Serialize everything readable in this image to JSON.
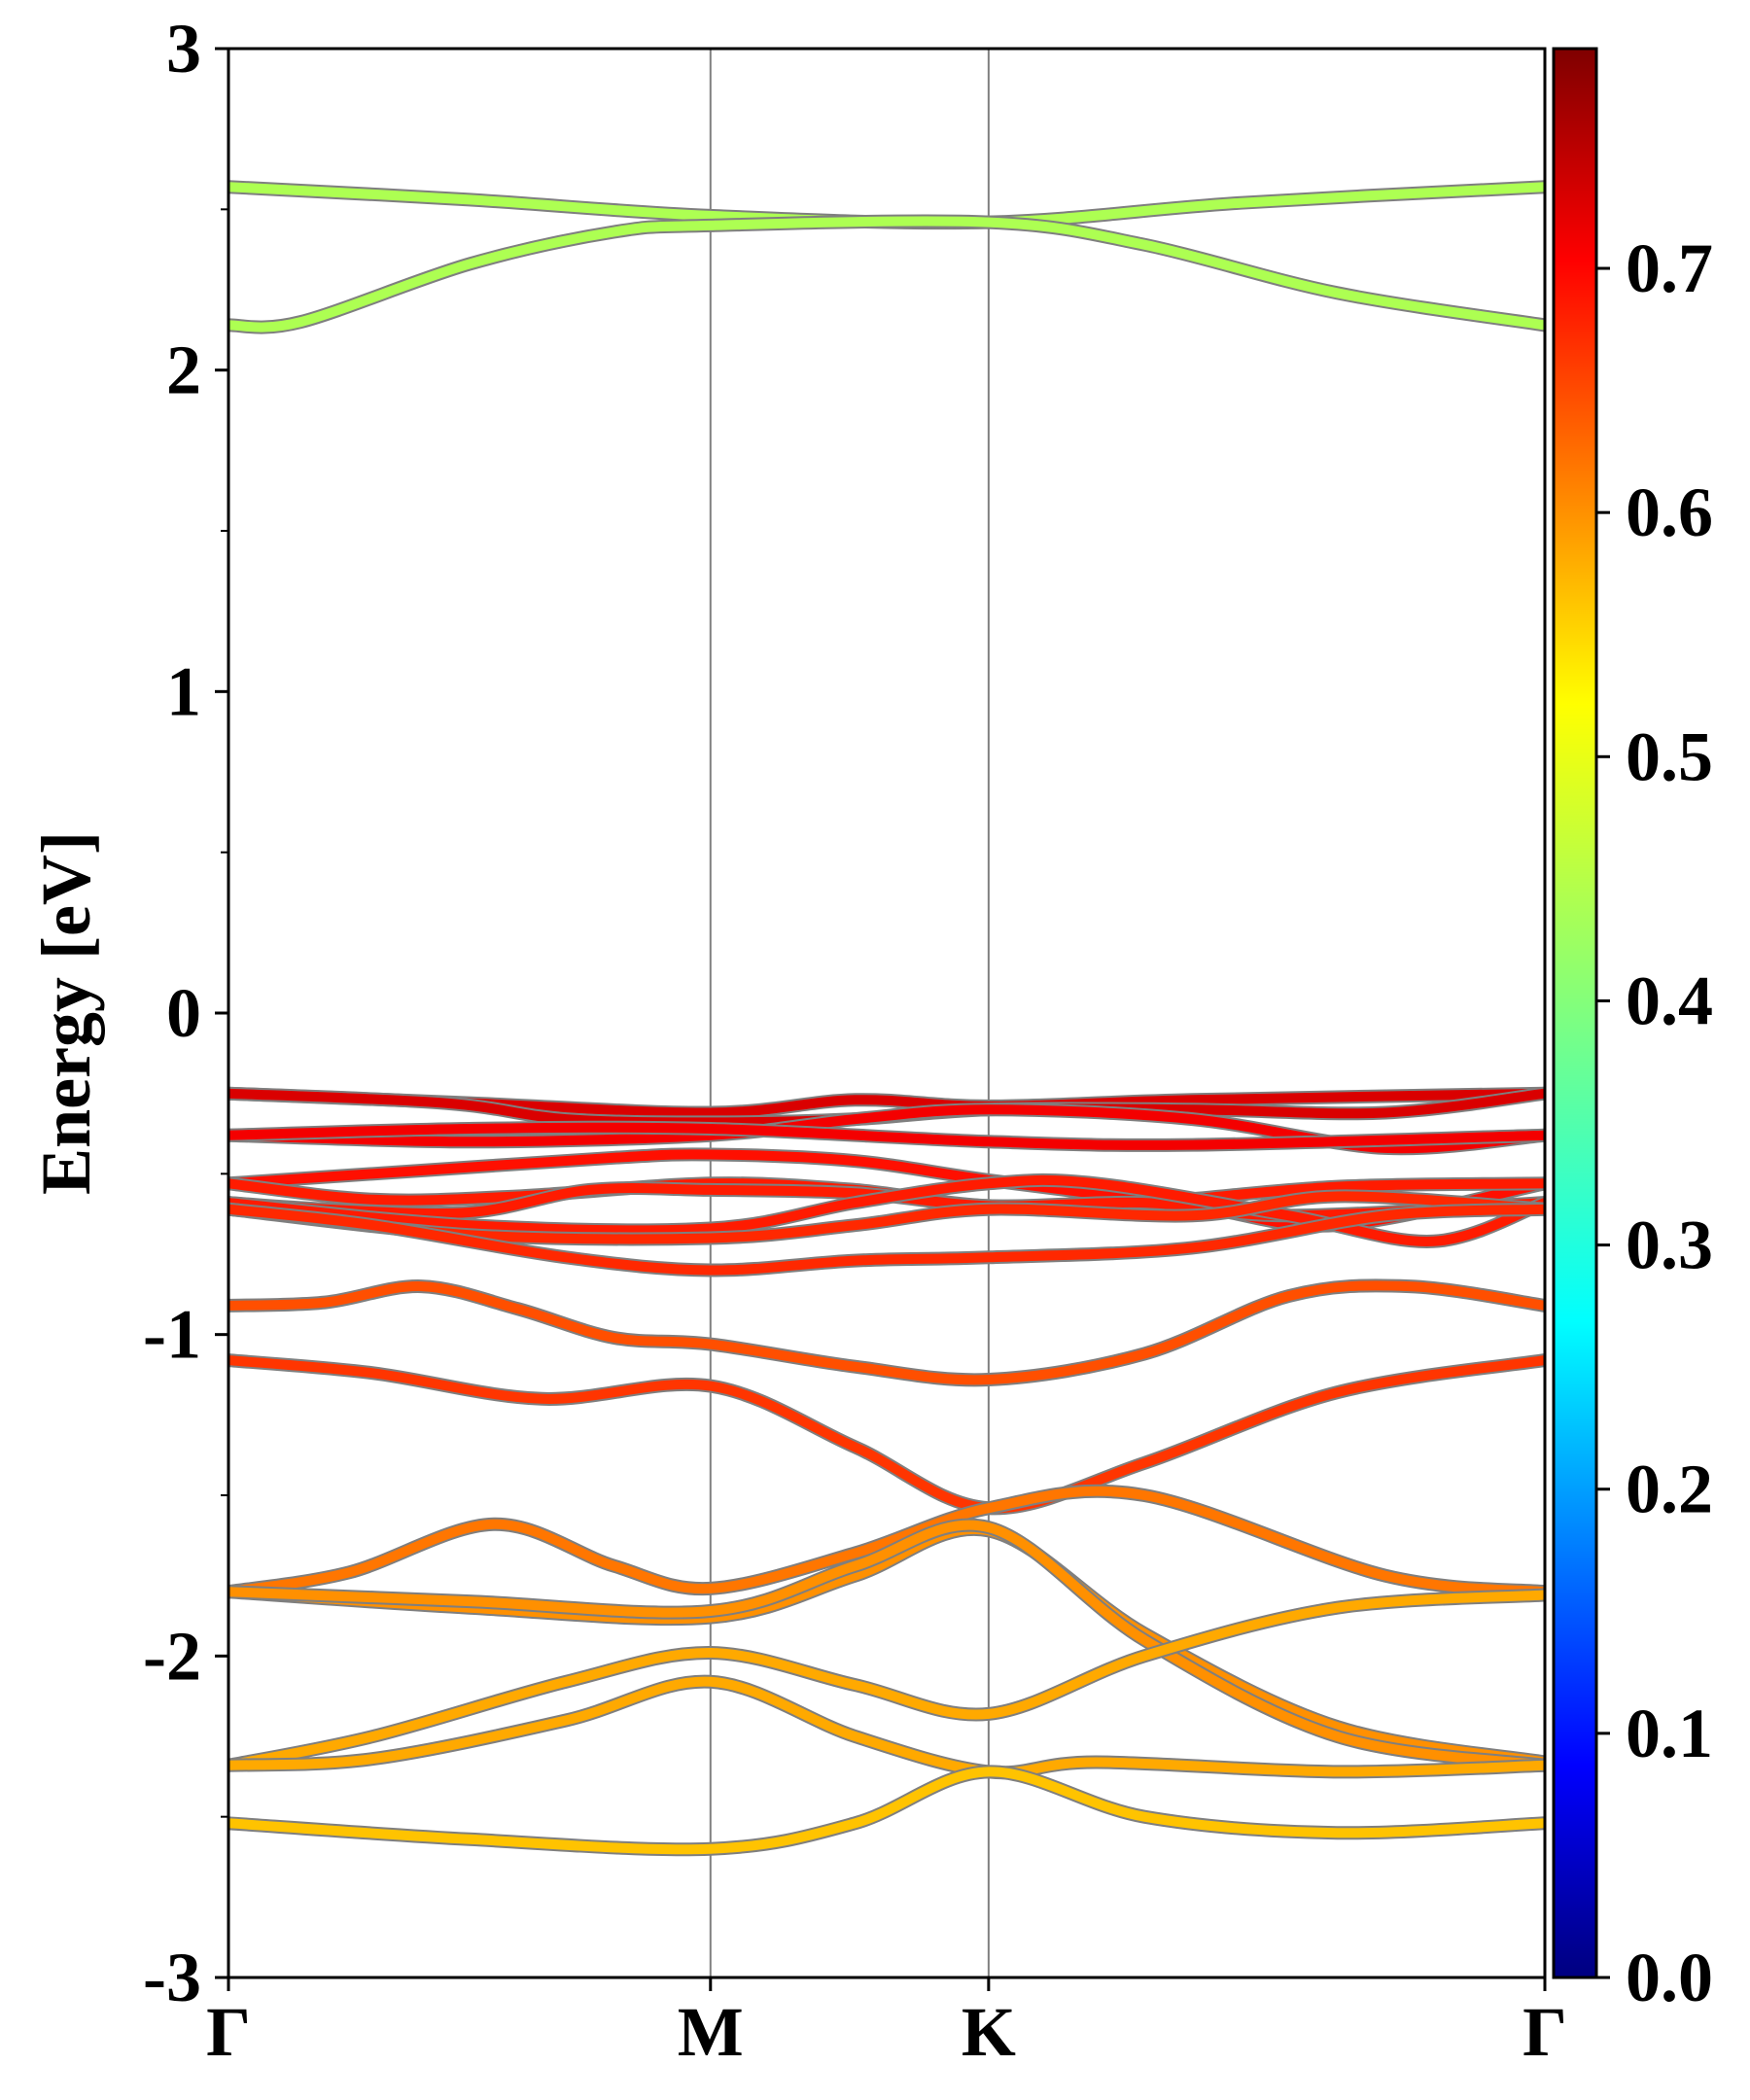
{
  "chart_data": {
    "type": "line",
    "title": "",
    "xlabel": "",
    "ylabel": "Energy [eV]",
    "ylim": [
      -3,
      3
    ],
    "yticks": [
      "-3",
      "-2",
      "-1",
      "0",
      "1",
      "2",
      "3"
    ],
    "yminor": [
      -2.5,
      -1.5,
      -0.5,
      0.5,
      1.5,
      2.5
    ],
    "kpath": {
      "labels": [
        "Γ",
        "M",
        "K",
        "Γ"
      ],
      "positions": [
        0,
        1,
        1.577,
        2.731
      ]
    },
    "grid": "vertical lines at high-symmetry points",
    "colorbar": {
      "ticks": [
        "0.0",
        "0.1",
        "0.2",
        "0.3",
        "0.4",
        "0.5",
        "0.6",
        "0.7"
      ],
      "min": 0.0,
      "max": 0.79,
      "colormap": "jet"
    },
    "line_edge_color": "#7f7f7f",
    "series": [
      {
        "weight": 0.43,
        "points": [
          [
            0,
            2.57
          ],
          [
            0.5,
            2.53
          ],
          [
            1,
            2.48
          ],
          [
            1.577,
            2.46
          ],
          [
            2.1,
            2.52
          ],
          [
            2.731,
            2.57
          ]
        ]
      },
      {
        "weight": 0.43,
        "points": [
          [
            0,
            2.14
          ],
          [
            0.15,
            2.15
          ],
          [
            0.5,
            2.33
          ],
          [
            0.8,
            2.43
          ],
          [
            1,
            2.45
          ],
          [
            1.577,
            2.46
          ],
          [
            1.9,
            2.39
          ],
          [
            2.3,
            2.24
          ],
          [
            2.731,
            2.14
          ]
        ]
      },
      {
        "weight": 0.72,
        "points": [
          [
            0,
            -0.25
          ],
          [
            0.5,
            -0.28
          ],
          [
            1,
            -0.31
          ],
          [
            1.3,
            -0.27
          ],
          [
            1.577,
            -0.29
          ],
          [
            2.0,
            -0.27
          ],
          [
            2.731,
            -0.25
          ]
        ]
      },
      {
        "weight": 0.72,
        "points": [
          [
            0,
            -0.25
          ],
          [
            0.45,
            -0.28
          ],
          [
            0.7,
            -0.33
          ],
          [
            1,
            -0.34
          ],
          [
            1.3,
            -0.33
          ],
          [
            1.577,
            -0.3
          ],
          [
            2.0,
            -0.3
          ],
          [
            2.4,
            -0.31
          ],
          [
            2.731,
            -0.25
          ]
        ]
      },
      {
        "weight": 0.7,
        "points": [
          [
            0,
            -0.38
          ],
          [
            0.5,
            -0.4
          ],
          [
            1,
            -0.38
          ],
          [
            1.3,
            -0.33
          ],
          [
            1.577,
            -0.3
          ],
          [
            2.0,
            -0.33
          ],
          [
            2.4,
            -0.42
          ],
          [
            2.731,
            -0.38
          ]
        ]
      },
      {
        "weight": 0.7,
        "points": [
          [
            0,
            -0.38
          ],
          [
            0.5,
            -0.36
          ],
          [
            1,
            -0.36
          ],
          [
            1.577,
            -0.4
          ],
          [
            2.0,
            -0.41
          ],
          [
            2.731,
            -0.38
          ]
        ]
      },
      {
        "weight": 0.68,
        "points": [
          [
            0,
            -0.53
          ],
          [
            0.4,
            -0.49
          ],
          [
            0.8,
            -0.45
          ],
          [
            1,
            -0.44
          ],
          [
            1.3,
            -0.46
          ],
          [
            1.577,
            -0.52
          ],
          [
            2.0,
            -0.6
          ],
          [
            2.3,
            -0.66
          ],
          [
            2.731,
            -0.53
          ]
        ]
      },
      {
        "weight": 0.67,
        "points": [
          [
            0,
            -0.53
          ],
          [
            0.3,
            -0.58
          ],
          [
            0.6,
            -0.57
          ],
          [
            1,
            -0.53
          ],
          [
            1.3,
            -0.55
          ],
          [
            1.577,
            -0.6
          ],
          [
            1.9,
            -0.59
          ],
          [
            2.3,
            -0.54
          ],
          [
            2.731,
            -0.53
          ]
        ]
      },
      {
        "weight": 0.67,
        "points": [
          [
            0,
            -0.59
          ],
          [
            0.2,
            -0.61
          ],
          [
            0.5,
            -0.62
          ],
          [
            0.75,
            -0.55
          ],
          [
            1,
            -0.55
          ],
          [
            1.3,
            -0.56
          ],
          [
            1.577,
            -0.6
          ],
          [
            1.9,
            -0.59
          ],
          [
            2.2,
            -0.63
          ],
          [
            2.731,
            -0.59
          ]
        ]
      },
      {
        "weight": 0.67,
        "points": [
          [
            0,
            -0.59
          ],
          [
            0.5,
            -0.66
          ],
          [
            1,
            -0.67
          ],
          [
            1.3,
            -0.59
          ],
          [
            1.577,
            -0.53
          ],
          [
            1.8,
            -0.53
          ],
          [
            2.2,
            -0.63
          ],
          [
            2.5,
            -0.71
          ],
          [
            2.731,
            -0.59
          ]
        ]
      },
      {
        "weight": 0.66,
        "points": [
          [
            0,
            -0.61
          ],
          [
            0.5,
            -0.69
          ],
          [
            1,
            -0.7
          ],
          [
            1.3,
            -0.66
          ],
          [
            1.577,
            -0.61
          ],
          [
            2.0,
            -0.63
          ],
          [
            2.3,
            -0.57
          ],
          [
            2.731,
            -0.61
          ]
        ]
      },
      {
        "weight": 0.66,
        "points": [
          [
            0,
            -0.61
          ],
          [
            0.3,
            -0.66
          ],
          [
            0.7,
            -0.76
          ],
          [
            1,
            -0.8
          ],
          [
            1.3,
            -0.77
          ],
          [
            1.577,
            -0.76
          ],
          [
            2.0,
            -0.73
          ],
          [
            2.4,
            -0.63
          ],
          [
            2.731,
            -0.61
          ]
        ]
      },
      {
        "weight": 0.63,
        "points": [
          [
            0,
            -0.91
          ],
          [
            0.2,
            -0.9
          ],
          [
            0.4,
            -0.85
          ],
          [
            0.6,
            -0.92
          ],
          [
            0.8,
            -1.01
          ],
          [
            1,
            -1.03
          ],
          [
            1.3,
            -1.1
          ],
          [
            1.577,
            -1.14
          ],
          [
            1.9,
            -1.06
          ],
          [
            2.2,
            -0.88
          ],
          [
            2.45,
            -0.85
          ],
          [
            2.731,
            -0.91
          ]
        ]
      },
      {
        "weight": 0.65,
        "points": [
          [
            0,
            -1.08
          ],
          [
            0.3,
            -1.12
          ],
          [
            0.65,
            -1.2
          ],
          [
            1,
            -1.16
          ],
          [
            1.3,
            -1.35
          ],
          [
            1.577,
            -1.54
          ],
          [
            1.9,
            -1.4
          ],
          [
            2.3,
            -1.18
          ],
          [
            2.731,
            -1.08
          ]
        ]
      },
      {
        "weight": 0.6,
        "points": [
          [
            0,
            -1.8
          ],
          [
            0.25,
            -1.74
          ],
          [
            0.55,
            -1.59
          ],
          [
            0.8,
            -1.72
          ],
          [
            1,
            -1.79
          ],
          [
            1.3,
            -1.68
          ],
          [
            1.577,
            -1.54
          ],
          [
            1.9,
            -1.5
          ],
          [
            2.4,
            -1.75
          ],
          [
            2.731,
            -1.8
          ]
        ]
      },
      {
        "weight": 0.58,
        "points": [
          [
            0,
            -1.8
          ],
          [
            0.5,
            -1.85
          ],
          [
            1,
            -1.88
          ],
          [
            1.3,
            -1.75
          ],
          [
            1.577,
            -1.61
          ],
          [
            1.9,
            -1.93
          ],
          [
            2.3,
            -2.22
          ],
          [
            2.731,
            -2.33
          ]
        ]
      },
      {
        "weight": 0.58,
        "points": [
          [
            0,
            -1.8
          ],
          [
            0.5,
            -1.83
          ],
          [
            1,
            -1.86
          ],
          [
            1.3,
            -1.72
          ],
          [
            1.577,
            -1.6
          ],
          [
            1.9,
            -1.95
          ],
          [
            2.3,
            -2.25
          ],
          [
            2.731,
            -2.34
          ]
        ]
      },
      {
        "weight": 0.56,
        "points": [
          [
            0,
            -2.34
          ],
          [
            0.3,
            -2.25
          ],
          [
            0.7,
            -2.08
          ],
          [
            1,
            -1.99
          ],
          [
            1.3,
            -2.09
          ],
          [
            1.577,
            -2.18
          ],
          [
            1.9,
            -2.0
          ],
          [
            2.3,
            -1.85
          ],
          [
            2.731,
            -1.81
          ]
        ]
      },
      {
        "weight": 0.56,
        "points": [
          [
            0,
            -2.34
          ],
          [
            0.3,
            -2.32
          ],
          [
            0.7,
            -2.2
          ],
          [
            1,
            -2.08
          ],
          [
            1.3,
            -2.25
          ],
          [
            1.577,
            -2.36
          ],
          [
            1.8,
            -2.33
          ],
          [
            2.3,
            -2.36
          ],
          [
            2.731,
            -2.34
          ]
        ]
      },
      {
        "weight": 0.54,
        "points": [
          [
            0,
            -2.52
          ],
          [
            0.5,
            -2.57
          ],
          [
            1,
            -2.6
          ],
          [
            1.3,
            -2.52
          ],
          [
            1.577,
            -2.36
          ],
          [
            1.9,
            -2.5
          ],
          [
            2.3,
            -2.55
          ],
          [
            2.731,
            -2.52
          ]
        ]
      }
    ]
  }
}
